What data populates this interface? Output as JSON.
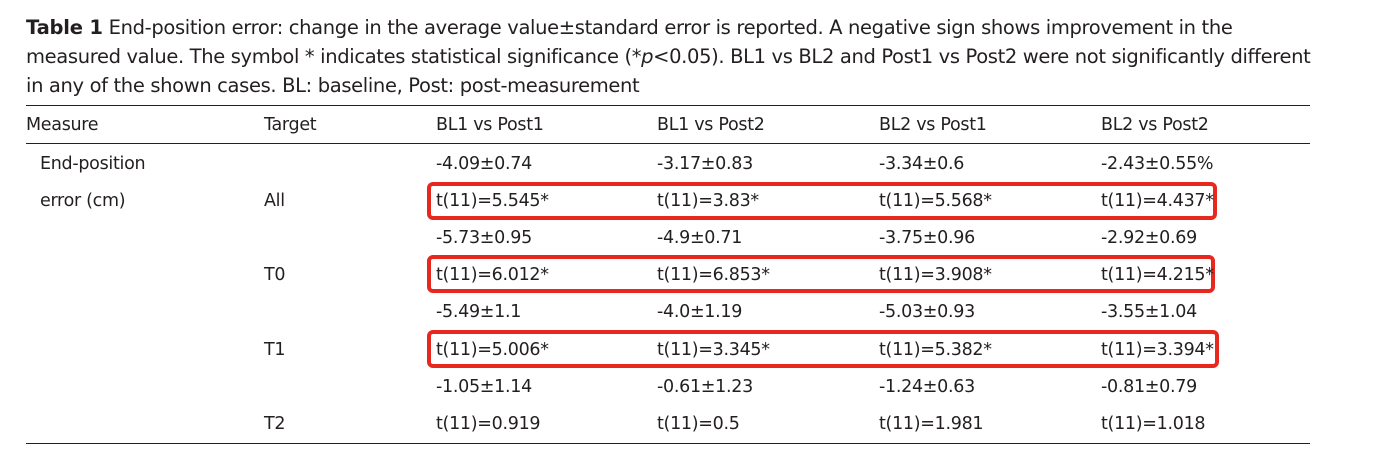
{
  "caption": {
    "label": "Table 1",
    "text_part1": "End-position error: change in the average value±standard error is reported. A negative sign shows improvement in the measured value. The symbol * indicates statistical significance (*",
    "text_italic": "p",
    "text_part2": "<0.05). BL1 vs BL2 and Post1 vs Post2 were not significantly different in any of the shown cases. BL: baseline, Post: post-measurement"
  },
  "headers": {
    "measure": "Measure",
    "target": "Target",
    "c1": "BL1 vs Post1",
    "c2": "BL1 vs Post2",
    "c3": "BL2 vs Post1",
    "c4": "BL2 vs Post2"
  },
  "measure": {
    "line1": "End-position",
    "line2": "error (cm)"
  },
  "rows": [
    {
      "target": "All",
      "mean": [
        "-4.09±0.74",
        "-3.17±0.83",
        "-3.34±0.6",
        "-2.43±0.55%"
      ],
      "t": [
        "t(11)=5.545*",
        "t(11)=3.83*",
        "t(11)=5.568*",
        "t(11)=4.437*"
      ],
      "highlighted": true
    },
    {
      "target": "T0",
      "mean": [
        "-5.73±0.95",
        "-4.9±0.71",
        "-3.75±0.96",
        "-2.92±0.69"
      ],
      "t": [
        "t(11)=6.012*",
        "t(11)=6.853*",
        "t(11)=3.908*",
        "t(11)=4.215*"
      ],
      "highlighted": true
    },
    {
      "target": "T1",
      "mean": [
        "-5.49±1.1",
        "-4.0±1.19",
        "-5.03±0.93",
        "-3.55±1.04"
      ],
      "t": [
        "t(11)=5.006*",
        "t(11)=3.345*",
        "t(11)=5.382*",
        "t(11)=3.394*"
      ],
      "highlighted": true
    },
    {
      "target": "T2",
      "mean": [
        "-1.05±1.14",
        "-0.61±1.23",
        "-1.24±0.63",
        "-0.81±0.79"
      ],
      "t": [
        "t(11)=0.919",
        "t(11)=0.5",
        "t(11)=1.981",
        "t(11)=1.018"
      ],
      "highlighted": false
    }
  ],
  "colors": {
    "highlight": "#e8281e",
    "text": "#231f20"
  }
}
